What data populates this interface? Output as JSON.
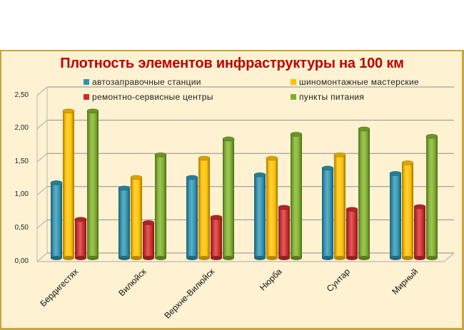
{
  "chart_data": {
    "type": "bar",
    "title": "Плотность элементов инфраструктуры на 100 км",
    "xlabel": "",
    "ylabel": "",
    "ylim": [
      0,
      2.5
    ],
    "yticks": [
      "0,00",
      "0,50",
      "1,00",
      "1,50",
      "2,00",
      "2,50"
    ],
    "grid": true,
    "legend_position": "top",
    "style": "3d-cylinder",
    "categories": [
      "Бердигестях",
      "Вилюйск",
      "Верхне-Вилюйск",
      "Нюрба",
      "Сунтар",
      "Мирный"
    ],
    "series": [
      {
        "name": "автозаправочные станции",
        "color": "#2e93b0",
        "values": [
          1.1,
          1.02,
          1.18,
          1.22,
          1.32,
          1.24
        ]
      },
      {
        "name": "шиномонтажные мастерские",
        "color": "#ffc000",
        "values": [
          2.18,
          1.18,
          1.47,
          1.47,
          1.52,
          1.4
        ]
      },
      {
        "name": "ремонтно-сервисные центры",
        "color": "#d02b2b",
        "values": [
          0.55,
          0.5,
          0.58,
          0.73,
          0.7,
          0.74
        ]
      },
      {
        "name": "пункты питания",
        "color": "#7faf2a",
        "values": [
          2.18,
          1.52,
          1.76,
          1.83,
          1.91,
          1.8
        ]
      }
    ]
  },
  "colors": {
    "background": "#fff2d2",
    "frame_border": "#caa43c",
    "title": "#c00000",
    "gridline": "#8c8c8c"
  }
}
